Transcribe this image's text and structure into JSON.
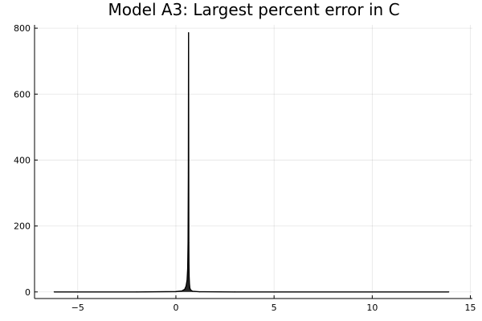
{
  "chart_data": {
    "type": "line",
    "title": "Model A3: Largest percent error in C",
    "xlabel": "",
    "ylabel": "",
    "xlim": [
      -7.2,
      15.1
    ],
    "ylim": [
      -20,
      810
    ],
    "x_ticks": [
      -5,
      0,
      5,
      10,
      15
    ],
    "x_tick_labels": [
      "−5",
      "0",
      "5",
      "10",
      "15"
    ],
    "y_ticks": [
      0,
      200,
      400,
      600,
      800
    ],
    "y_tick_labels": [
      "0",
      "200",
      "400",
      "600",
      "800"
    ],
    "grid": true,
    "legend": "none",
    "series": [
      {
        "name": "percent error",
        "color": "#000000",
        "x": [
          -6.2,
          -2,
          0,
          0.3,
          0.45,
          0.52,
          0.57,
          0.6,
          0.62,
          0.635,
          0.645,
          0.652,
          0.658,
          0.665,
          0.675,
          0.69,
          0.71,
          0.75,
          0.85,
          1.2,
          3,
          13.9
        ],
        "y": [
          0,
          0,
          1,
          3,
          8,
          18,
          35,
          70,
          150,
          360,
          786,
          420,
          150,
          80,
          45,
          25,
          12,
          6,
          2,
          0.5,
          0,
          0
        ]
      }
    ]
  }
}
